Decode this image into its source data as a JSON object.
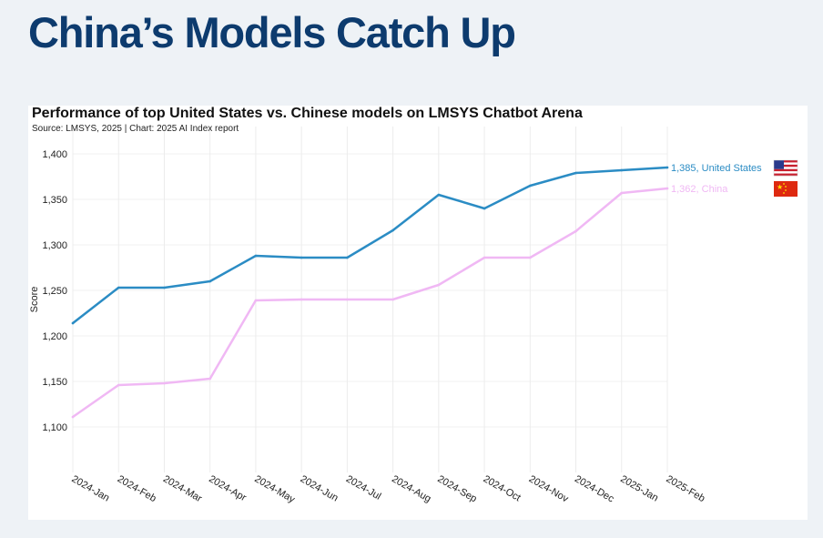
{
  "page": {
    "headline": "China’s Models Catch Up"
  },
  "colors": {
    "background": "#eef2f6",
    "headline": "#0d3b6e",
    "united_states": "#2b8cc4",
    "china": "#f0b8f4"
  },
  "chart_data": {
    "type": "line",
    "title": "Performance of top United States vs. Chinese models on LMSYS Chatbot Arena",
    "subtitle": "Source: LMSYS, 2025 | Chart: 2025 AI Index report",
    "xlabel": "",
    "ylabel": "Score",
    "ylim": [
      1050,
      1430
    ],
    "yticks": [
      "1,100",
      "1,150",
      "1,200",
      "1,250",
      "1,300",
      "1,350",
      "1,400"
    ],
    "ytick_values": [
      1100,
      1150,
      1200,
      1250,
      1300,
      1350,
      1400
    ],
    "categories": [
      "2024-Jan",
      "2024-Feb",
      "2024-Mar",
      "2024-Apr",
      "2024-May",
      "2024-Jun",
      "2024-Jul",
      "2024-Aug",
      "2024-Sep",
      "2024-Oct",
      "2024-Nov",
      "2024-Dec",
      "2025-Jan",
      "2025-Feb"
    ],
    "grid": true,
    "series": [
      {
        "key": "united_states",
        "color": "#2b8cc4",
        "values": [
          1214,
          1253,
          1253,
          1260,
          1288,
          1286,
          1286,
          1316,
          1355,
          1340,
          1365,
          1379,
          1382,
          1385
        ],
        "end_label": "1,385, United States",
        "flag_icon": "us-flag-icon"
      },
      {
        "key": "china",
        "color": "#f0b8f4",
        "values": [
          1111,
          1146,
          1148,
          1153,
          1239,
          1240,
          1240,
          1240,
          1256,
          1286,
          1286,
          1315,
          1357,
          1362
        ],
        "end_label": "1,362, China",
        "flag_icon": "china-flag-icon"
      }
    ]
  }
}
